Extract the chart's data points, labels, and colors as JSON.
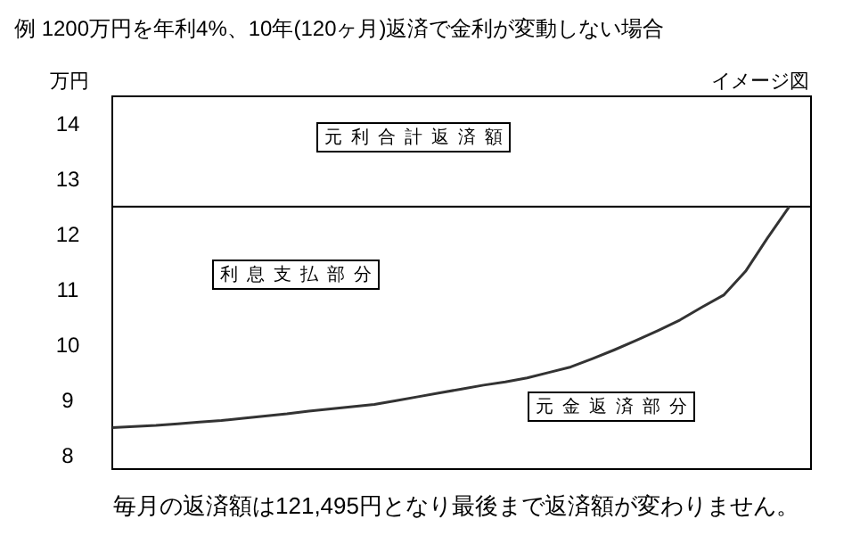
{
  "chart_data": {
    "type": "line",
    "title": "例 1200万円を年利4%、10年(120ヶ月)返済で金利が変動しない場合",
    "ylabel": "万円",
    "categories": [
      null,
      null,
      null,
      null,
      null,
      null,
      null,
      null,
      null,
      null,
      null,
      null,
      null,
      null,
      null,
      null,
      null,
      null,
      null,
      null,
      null,
      null,
      null,
      null,
      null,
      null,
      null,
      null,
      null,
      null,
      null,
      null,
      null
    ],
    "series": [
      {
        "color": "#333333",
        "values": [
          8.5,
          8.52,
          8.54,
          8.57,
          8.6,
          8.63,
          8.67,
          8.71,
          8.75,
          8.8,
          8.84,
          8.88,
          8.92,
          8.99,
          9.06,
          9.13,
          9.2,
          9.27,
          9.33,
          9.4,
          9.5,
          9.6,
          9.75,
          9.91,
          10.08,
          10.26,
          10.45,
          10.68,
          10.9,
          11.33,
          11.93,
          12.5,
          null
        ]
      }
    ],
    "ylim": [
      7.75,
      14.5
    ],
    "yticks": [
      8,
      9,
      10,
      11,
      12,
      13,
      14
    ],
    "ref_lines": [
      {
        "axis": "y",
        "value": 12.5,
        "color": "#000000"
      }
    ],
    "annotations": [
      "元利合計返済額",
      "利息支払部分",
      "元金返済部分",
      "イメージ図",
      "毎月の返済額は121,495円となり最後まで返済額が変わりません。"
    ]
  }
}
